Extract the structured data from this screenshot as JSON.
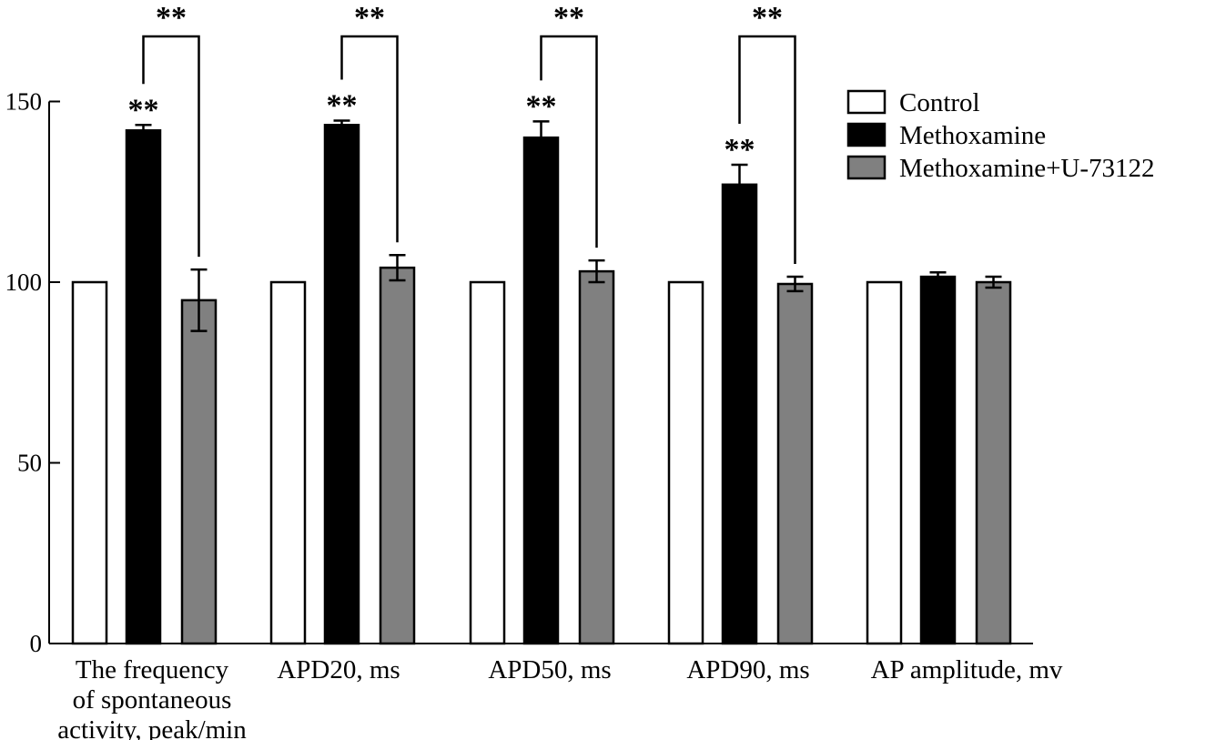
{
  "chart_data": {
    "type": "bar",
    "title": "",
    "xlabel": "",
    "ylabel": "",
    "ylim": [
      0,
      150
    ],
    "yticks": [
      0,
      50,
      100,
      150
    ],
    "grid": false,
    "legend_position": "top-right",
    "categories": [
      [
        "The frequency",
        "of spontaneous",
        "activity, peak/min"
      ],
      [
        "APD20, ms"
      ],
      [
        "APD50, ms"
      ],
      [
        "APD90, ms"
      ],
      [
        "AP amplitude, mv"
      ]
    ],
    "series": [
      {
        "name": "Control",
        "color": "#ffffff",
        "values": [
          100,
          100,
          100,
          100,
          100
        ],
        "errors": [
          0,
          0,
          0,
          0,
          0
        ]
      },
      {
        "name": "Methoxamine",
        "color": "#000000",
        "values": [
          142,
          143.5,
          140,
          127,
          101.5
        ],
        "errors": [
          1.5,
          1.2,
          4.5,
          5.5,
          1.2
        ]
      },
      {
        "name": "Methoxamine+U-73122",
        "color": "#808080",
        "values": [
          95,
          104,
          103,
          99.5,
          100
        ],
        "errors": [
          8.5,
          3.5,
          3,
          2,
          1.5
        ]
      }
    ],
    "annotations": {
      "star_label": "**",
      "methoxamine_stars": [
        true,
        true,
        true,
        true,
        false
      ],
      "comparison_brackets": [
        true,
        true,
        true,
        true,
        false
      ]
    }
  }
}
